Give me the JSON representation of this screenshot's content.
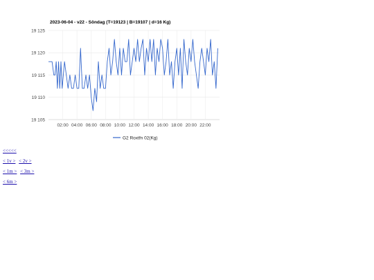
{
  "chart_data": {
    "type": "line",
    "title": "2023-06-04 - v22 - Söndag (T=19123 | B=19107 | d=16 Kg)",
    "xlabel": "",
    "ylabel": "",
    "ylim": [
      19105,
      19125
    ],
    "xlim": [
      "00:00",
      "24:00"
    ],
    "y_ticks": [
      "19 105",
      "19 110",
      "19 115",
      "19 120",
      "19 125"
    ],
    "x_ticks": [
      "02:00",
      "04:00",
      "06:00",
      "08:00",
      "10:00",
      "12:00",
      "14:00",
      "16:00",
      "18:00",
      "20:00",
      "22:00"
    ],
    "grid": true,
    "legend_position": "bottom",
    "series": [
      {
        "name": "G2 Roxtfn 02(Kg)",
        "color": "#3366cc",
        "x": [
          "00:00",
          "00:15",
          "00:30",
          "00:45",
          "00:55",
          "01:05",
          "01:15",
          "01:25",
          "01:35",
          "01:45",
          "01:55",
          "02:05",
          "02:15",
          "02:30",
          "02:45",
          "03:00",
          "03:15",
          "03:30",
          "03:45",
          "04:00",
          "04:15",
          "04:30",
          "04:45",
          "05:00",
          "05:15",
          "05:30",
          "05:45",
          "06:00",
          "06:15",
          "06:30",
          "06:45",
          "07:00",
          "07:15",
          "07:30",
          "07:45",
          "08:00",
          "08:15",
          "08:30",
          "08:45",
          "09:00",
          "09:15",
          "09:30",
          "09:45",
          "10:00",
          "10:15",
          "10:30",
          "10:45",
          "11:00",
          "11:15",
          "11:30",
          "11:45",
          "12:00",
          "12:15",
          "12:30",
          "12:45",
          "13:00",
          "13:15",
          "13:30",
          "13:45",
          "14:00",
          "14:15",
          "14:30",
          "14:45",
          "15:00",
          "15:15",
          "15:30",
          "15:45",
          "16:00",
          "16:15",
          "16:30",
          "16:45",
          "17:00",
          "17:15",
          "17:30",
          "17:45",
          "18:00",
          "18:15",
          "18:30",
          "18:45",
          "19:00",
          "19:15",
          "19:30",
          "19:45",
          "20:00",
          "20:15",
          "20:30",
          "20:45",
          "21:00",
          "21:15",
          "21:30",
          "21:45",
          "22:00",
          "22:15",
          "22:30",
          "22:45",
          "23:00",
          "23:15",
          "23:30",
          "23:45"
        ],
        "values": [
          19118,
          19118,
          19118,
          19115,
          19115,
          19118,
          19112,
          19118,
          19112,
          19118,
          19112,
          19115,
          19118,
          19115,
          19112,
          19115,
          19112,
          19112,
          19115,
          19112,
          19112,
          19121,
          19112,
          19112,
          19115,
          19112,
          19115,
          19110,
          19107,
          19112,
          19109,
          19118,
          19112,
          19115,
          19112,
          19112,
          19118,
          19121,
          19115,
          19118,
          19123,
          19118,
          19115,
          19121,
          19115,
          19121,
          19118,
          19118,
          19123,
          19115,
          19118,
          19121,
          19118,
          19123,
          19118,
          19121,
          19123,
          19115,
          19121,
          19118,
          19123,
          19118,
          19123,
          19115,
          19121,
          19118,
          19123,
          19121,
          19115,
          19118,
          19123,
          19115,
          19118,
          19112,
          19118,
          19121,
          19115,
          19121,
          19112,
          19123,
          19118,
          19115,
          19121,
          19118,
          19123,
          19118,
          19115,
          19112,
          19118,
          19121,
          19118,
          19115,
          19121,
          19118,
          19123,
          19115,
          19118,
          19112,
          19121
        ]
      }
    ]
  },
  "nav_links": {
    "row1": [
      "<<<<<"
    ],
    "row2": [
      "< 1v >",
      "< 2v >"
    ],
    "row3": [
      "< 1m >",
      "< 3m >"
    ],
    "row4": [
      "< 6m >"
    ]
  }
}
